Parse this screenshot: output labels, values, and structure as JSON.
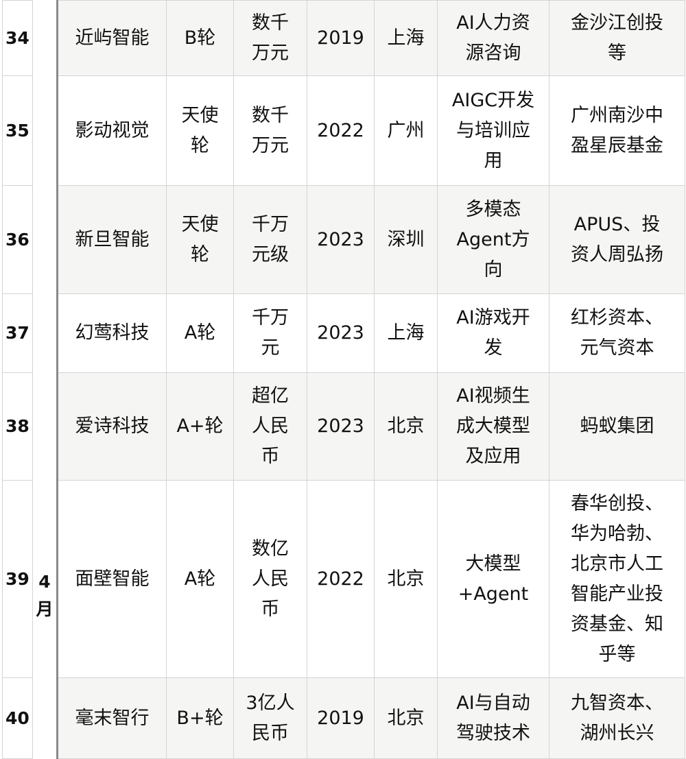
{
  "month_label": "4\n月",
  "rows": [
    {
      "no": "34",
      "name": "近屿智能",
      "round": "B轮",
      "amount": "数千\n万元",
      "year": "2019",
      "city": "上海",
      "business": "AI人力资\n源咨询",
      "investors": "金沙江创投\n等"
    },
    {
      "no": "35",
      "name": "影动视觉",
      "round": "天使\n轮",
      "amount": "数千\n万元",
      "year": "2022",
      "city": "广州",
      "business": "AIGC开发\n与培训应\n用",
      "investors": "广州南沙中\n盈星辰基金"
    },
    {
      "no": "36",
      "name": "新旦智能",
      "round": "天使\n轮",
      "amount": "千万\n元级",
      "year": "2023",
      "city": "深圳",
      "business": "多模态\nAgent方\n向",
      "investors": "APUS、投\n资人周弘扬"
    },
    {
      "no": "37",
      "name": "幻莺科技",
      "round": "A轮",
      "amount": "千万\n元",
      "year": "2023",
      "city": "上海",
      "business": "AI游戏开\n发",
      "investors": "红杉资本、\n元气资本"
    },
    {
      "no": "38",
      "name": "爱诗科技",
      "round": "A+轮",
      "amount": "超亿\n人民\n币",
      "year": "2023",
      "city": "北京",
      "business": "AI视频生\n成大模型\n及应用",
      "investors": "蚂蚁集团"
    },
    {
      "no": "39",
      "name": "面壁智能",
      "round": "A轮",
      "amount": "数亿\n人民\n币",
      "year": "2022",
      "city": "北京",
      "business": "大模型\n+Agent",
      "investors": "春华创投、\n华为哈勃、\n北京市人工\n智能产业投\n资基金、知\n乎等"
    },
    {
      "no": "40",
      "name": "毫末智行",
      "round": "B+轮",
      "amount": "3亿人\n民币",
      "year": "2019",
      "city": "北京",
      "business": "AI与自动\n驾驶技术",
      "investors": "九智资本、\n湖州长兴"
    }
  ]
}
